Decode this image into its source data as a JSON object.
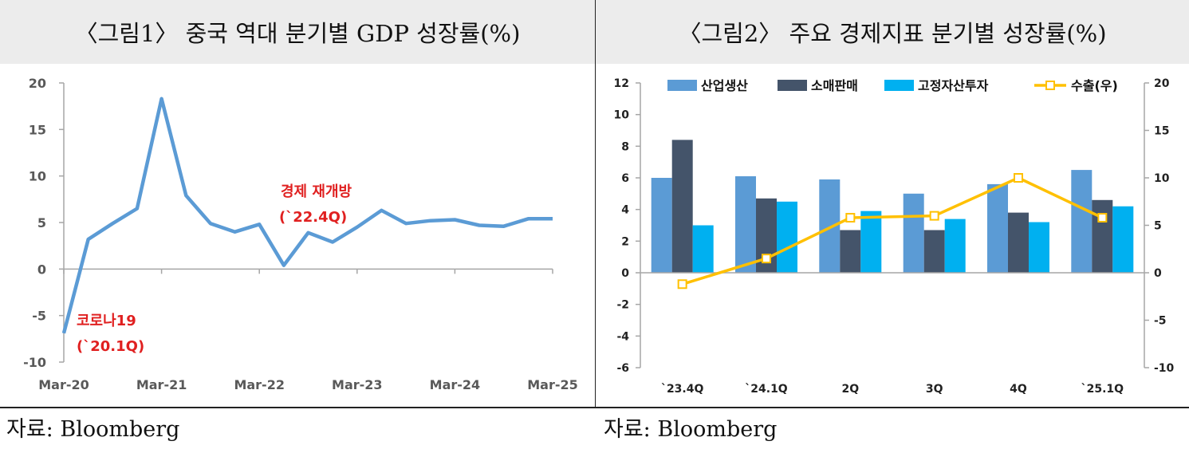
{
  "chart_data": [
    {
      "type": "line",
      "title": "〈그림1〉 중국 역대 분기별 GDP 성장률(%)",
      "xlabel": "",
      "ylabel": "",
      "ylim": [
        -10,
        20
      ],
      "yticks": [
        -10,
        -5,
        0,
        5,
        10,
        15,
        20
      ],
      "x_tick_labels": [
        "Mar-20",
        "Mar-21",
        "Mar-22",
        "Mar-23",
        "Mar-24",
        "Mar-25"
      ],
      "grid": false,
      "series": [
        {
          "color": "#5b9bd5",
          "values": [
            -6.9,
            3.2,
            4.9,
            6.5,
            18.3,
            7.9,
            4.9,
            4.0,
            4.8,
            0.4,
            3.9,
            2.9,
            4.5,
            6.3,
            4.9,
            5.2,
            5.3,
            4.7,
            4.6,
            5.4,
            5.4
          ]
        }
      ],
      "annotations": [
        {
          "line1": "코로나19",
          "line2": "(`20.1Q)",
          "color": "#e02020"
        },
        {
          "line1": "경제 재개방",
          "line2": "(`22.4Q)",
          "color": "#e02020"
        }
      ]
    },
    {
      "type": "bar",
      "title": "〈그림2〉 주요 경제지표 분기별 성장률(%)",
      "categories": [
        "`23.4Q",
        "`24.1Q",
        "2Q",
        "3Q",
        "4Q",
        "`25.1Q"
      ],
      "ylim": [
        -6,
        12
      ],
      "yticks": [
        -6,
        -4,
        -2,
        0,
        2,
        4,
        6,
        8,
        10,
        12
      ],
      "y2lim": [
        -10,
        20
      ],
      "y2ticks": [
        -10,
        -5,
        0,
        5,
        10,
        15,
        20
      ],
      "grid": false,
      "legend_position": "top",
      "series": [
        {
          "name": "산업생산",
          "type": "bar",
          "axis": "left",
          "color": "#5b9bd5",
          "values": [
            6.0,
            6.1,
            5.9,
            5.0,
            5.6,
            6.5
          ]
        },
        {
          "name": "소매판매",
          "type": "bar",
          "axis": "left",
          "color": "#44546a",
          "values": [
            8.4,
            4.7,
            2.7,
            2.7,
            3.8,
            4.6
          ]
        },
        {
          "name": "고정자산투자",
          "type": "bar",
          "axis": "left",
          "color": "#00b0f0",
          "values": [
            3.0,
            4.5,
            3.9,
            3.4,
            3.2,
            4.2
          ]
        },
        {
          "name": "수출(우)",
          "type": "line",
          "axis": "right",
          "color": "#ffc000",
          "values": [
            -1.2,
            1.5,
            5.8,
            6.0,
            10.0,
            5.8
          ]
        }
      ]
    }
  ],
  "source_left": "자료: Bloomberg",
  "source_right": "자료: Bloomberg"
}
